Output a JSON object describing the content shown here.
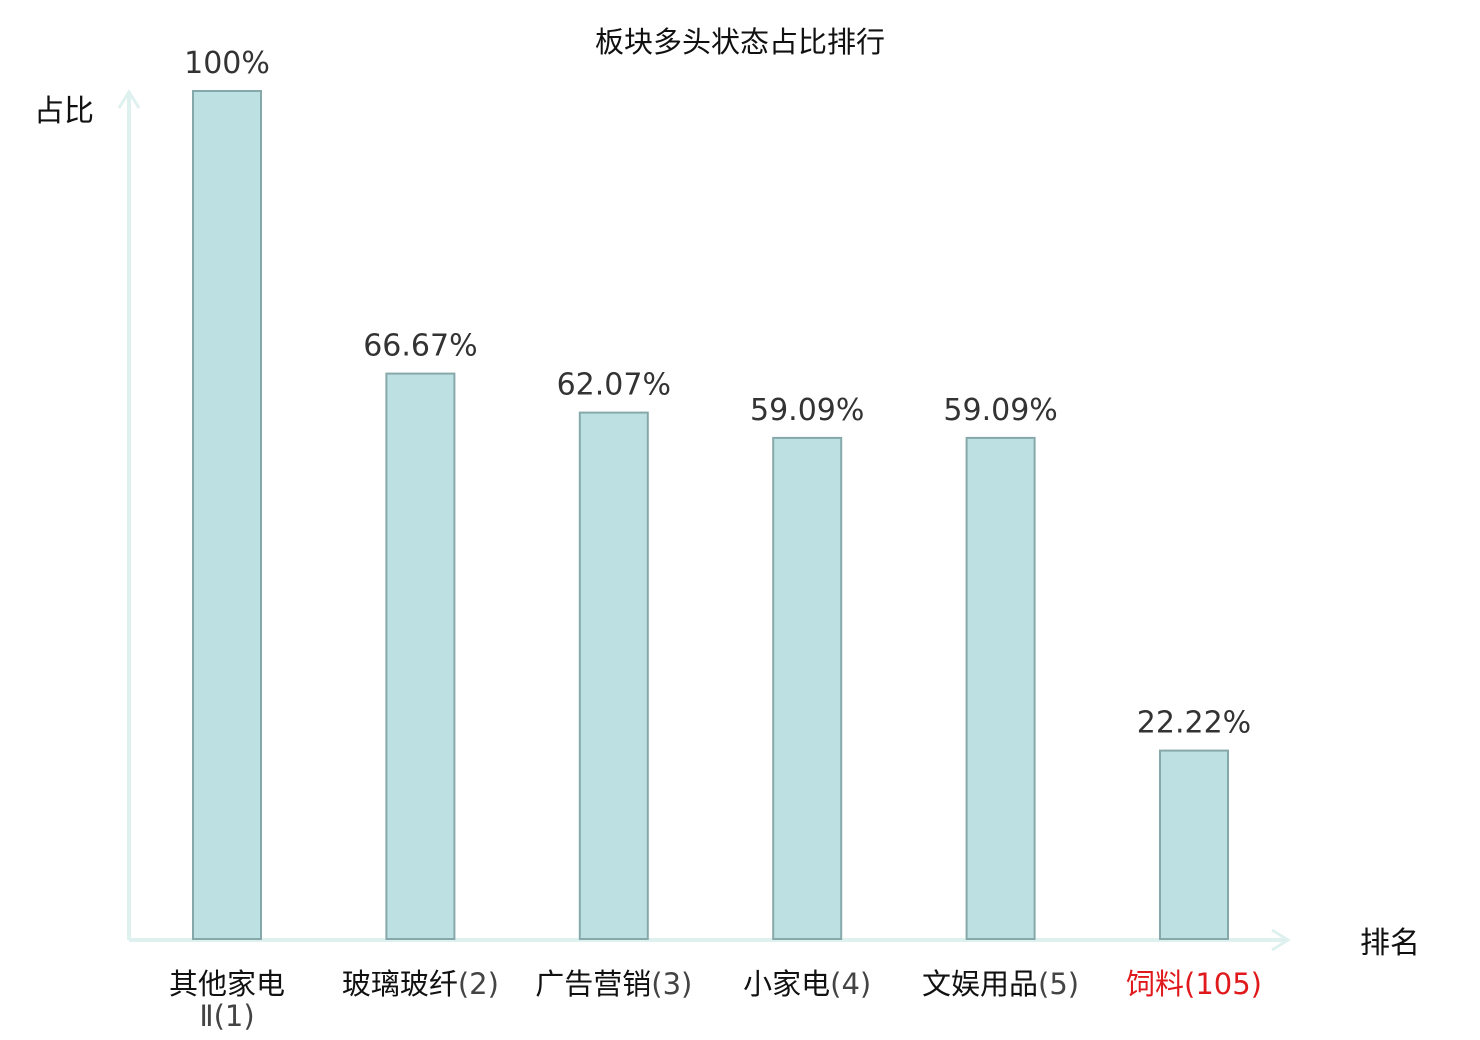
{
  "chart_data": {
    "type": "bar",
    "title": "板块多头状态占比排行",
    "ylabel": "占比",
    "xlabel": "排名",
    "ylim": [
      0,
      100
    ],
    "grid": false,
    "categories": [
      {
        "name": "其他家电Ⅱ",
        "rank": "(1)",
        "highlight": false
      },
      {
        "name": "玻璃玻纤",
        "rank": "(2)",
        "highlight": false
      },
      {
        "name": "广告营销",
        "rank": "(3)",
        "highlight": false
      },
      {
        "name": "小家电",
        "rank": "(4)",
        "highlight": false
      },
      {
        "name": "文娱用品",
        "rank": "(5)",
        "highlight": false
      },
      {
        "name": "饲料",
        "rank": "(105)",
        "highlight": true
      }
    ],
    "values": [
      100,
      66.67,
      62.07,
      59.09,
      59.09,
      22.22
    ],
    "value_labels": [
      "100%",
      "66.67%",
      "62.07%",
      "59.09%",
      "59.09%",
      "22.22%"
    ]
  },
  "colors": {
    "bar_fill": "#bde1e3",
    "bar_stroke": "#86a8aa",
    "axis": "#dff1ee",
    "text": "#111111",
    "value_text": "#333333",
    "rank_text": "#444444",
    "highlight": "#e0191c"
  }
}
